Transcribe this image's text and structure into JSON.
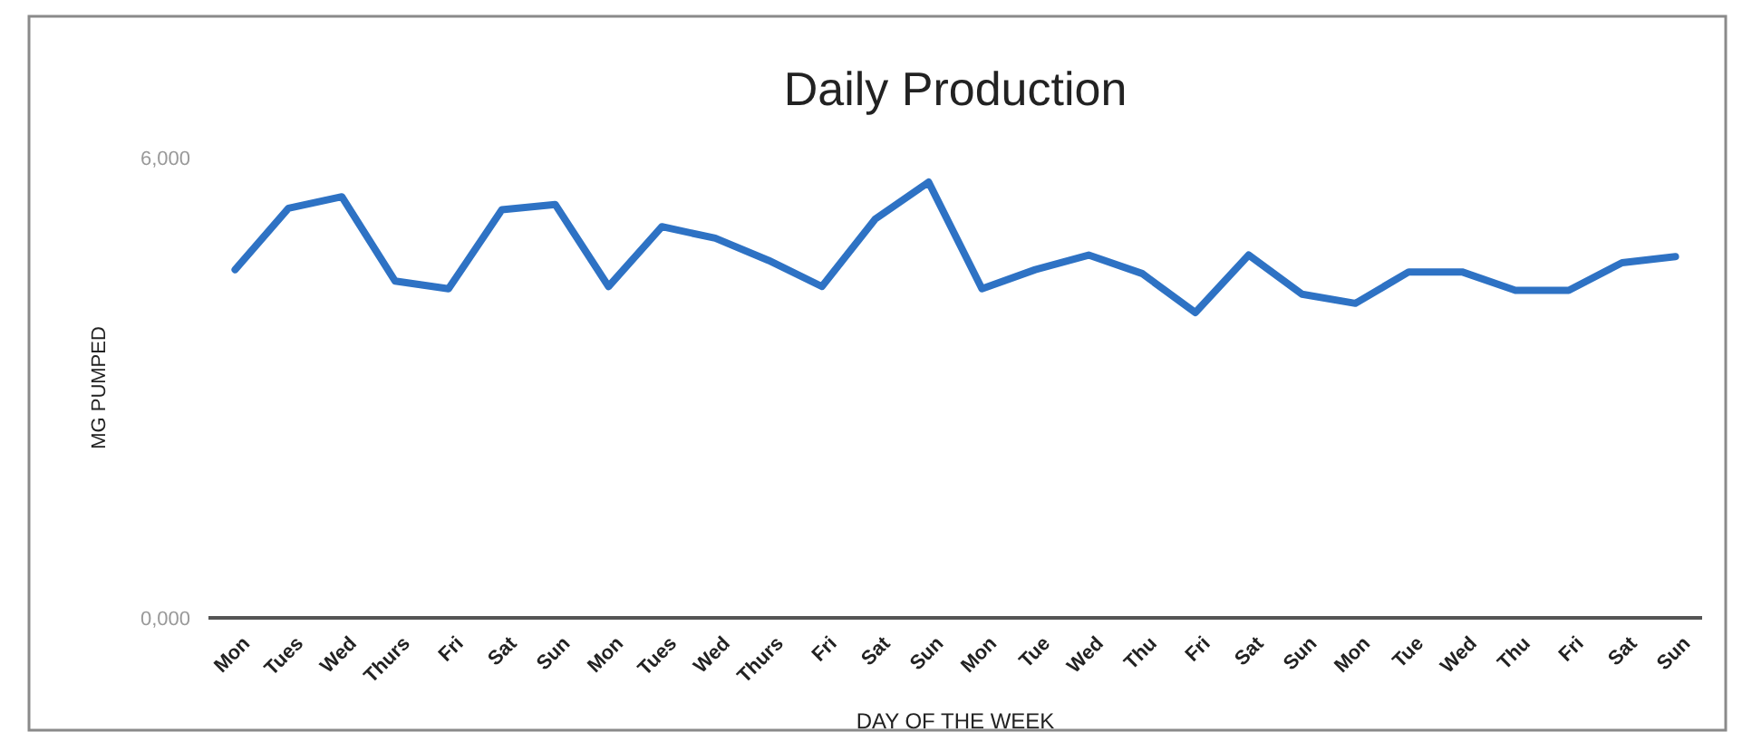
{
  "chart_data": {
    "type": "line",
    "title": "Daily Production",
    "xlabel": "DAY OF THE WEEK",
    "ylabel": "MG PUMPED",
    "categories": [
      "Mon",
      "Tues",
      "Wed",
      "Thurs",
      "Fri",
      "Sat",
      "Sun",
      "Mon",
      "Tues",
      "Wed",
      "Thurs",
      "Fri",
      "Sat",
      "Sun",
      "Mon",
      "Tue",
      "Wed",
      "Thu",
      "Fri",
      "Sat",
      "Sun",
      "Mon",
      "Tue",
      "Wed",
      "Thu",
      "Fri",
      "Sat",
      "Sun"
    ],
    "series": [
      {
        "color": "#2e72c4",
        "values": [
          4540,
          5340,
          5490,
          4390,
          4290,
          5320,
          5390,
          4320,
          5100,
          4950,
          4660,
          4320,
          5200,
          5680,
          4290,
          4540,
          4730,
          4490,
          3980,
          4730,
          4220,
          4100,
          4510,
          4510,
          4270,
          4270,
          4630,
          4710
        ]
      }
    ],
    "ylim": [
      0,
      6000
    ],
    "yticks": [
      {
        "value": 0,
        "label": "0,000"
      },
      {
        "value": 6000,
        "label": "6,000"
      }
    ],
    "grid": false,
    "marker": "none",
    "line_style": "solid"
  }
}
